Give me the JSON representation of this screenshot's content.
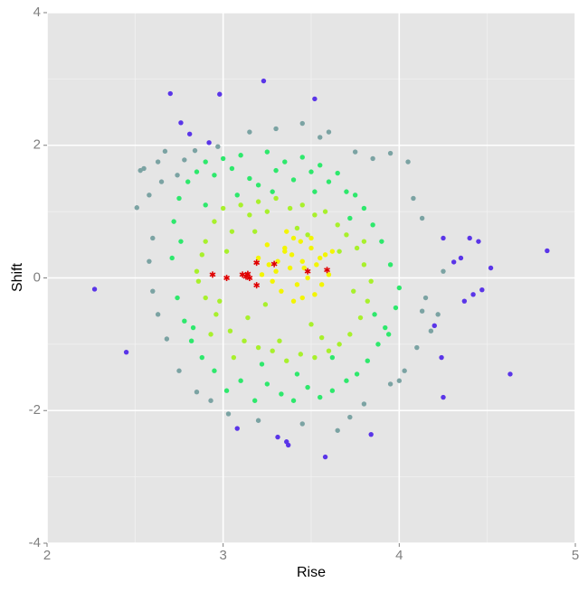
{
  "chart_data": {
    "type": "scatter",
    "x_label": "Rise",
    "y_label": "Shift",
    "xlim": [
      2,
      5
    ],
    "xticks": [
      2,
      3,
      4,
      5
    ],
    "ylim": [
      -4,
      4
    ],
    "yticks": [
      -4,
      -2,
      0,
      2,
      4
    ],
    "grid": true,
    "series": [
      {
        "color": "#5a35e8",
        "marker": "circle",
        "x": [
          2.27,
          2.7,
          2.98,
          3.23,
          4.84,
          4.63,
          2.45,
          3.58,
          3.84,
          4.25,
          4.52,
          4.45,
          4.4,
          4.47,
          4.42,
          4.35,
          4.25,
          4.37,
          4.31,
          4.2,
          4.24,
          3.37,
          3.31,
          3.36,
          3.08,
          3.52,
          2.92,
          2.76,
          2.81
        ],
        "y": [
          -0.17,
          2.78,
          2.77,
          2.97,
          0.41,
          -1.45,
          -1.12,
          -2.7,
          -2.36,
          -1.8,
          0.15,
          0.55,
          0.6,
          -0.18,
          -0.25,
          0.3,
          0.6,
          -0.35,
          0.24,
          -0.72,
          -1.2,
          -2.52,
          -2.4,
          -2.47,
          -2.27,
          2.7,
          2.04,
          2.34,
          2.17
        ]
      },
      {
        "color": "#7ba3a3",
        "marker": "circle",
        "x": [
          2.53,
          2.55,
          2.58,
          2.51,
          2.63,
          2.67,
          2.78,
          2.84,
          2.97,
          3.15,
          3.3,
          3.45,
          3.55,
          3.6,
          3.75,
          3.85,
          3.95,
          4.05,
          4.08,
          4.13,
          4.13,
          4.18,
          4.1,
          4.03,
          3.95,
          3.8,
          3.72,
          3.65,
          3.45,
          3.2,
          3.03,
          2.93,
          2.85,
          2.75,
          2.68,
          2.63,
          2.6,
          2.58,
          2.6,
          4.0,
          4.15,
          4.25,
          4.22,
          2.65,
          2.74
        ],
        "y": [
          1.62,
          1.65,
          1.25,
          1.06,
          1.75,
          1.91,
          1.78,
          1.92,
          1.98,
          2.2,
          2.25,
          2.33,
          2.12,
          2.2,
          1.9,
          1.8,
          1.88,
          1.75,
          1.2,
          0.9,
          -0.5,
          -0.8,
          -1.05,
          -1.4,
          -1.6,
          -1.9,
          -2.1,
          -2.3,
          -2.2,
          -2.15,
          -2.05,
          -1.85,
          -1.72,
          -1.4,
          -0.92,
          -0.55,
          -0.2,
          0.25,
          0.6,
          -1.55,
          -0.3,
          0.1,
          -0.55,
          1.45,
          1.55
        ]
      },
      {
        "color": "#2ee86c",
        "marker": "circle",
        "x": [
          2.72,
          2.75,
          2.8,
          2.85,
          2.9,
          2.95,
          3.0,
          3.05,
          3.1,
          3.15,
          3.2,
          3.25,
          3.3,
          3.35,
          3.4,
          3.45,
          3.5,
          3.55,
          3.6,
          3.65,
          3.7,
          3.75,
          3.8,
          3.85,
          3.9,
          3.95,
          4.0,
          3.98,
          3.92,
          3.88,
          3.82,
          3.76,
          3.7,
          3.62,
          3.55,
          3.48,
          3.4,
          3.33,
          3.25,
          3.18,
          3.1,
          3.02,
          2.95,
          2.88,
          2.82,
          2.78,
          2.74,
          2.71,
          2.76,
          2.83,
          3.22,
          3.42,
          3.62,
          3.86,
          2.9,
          3.08,
          3.28,
          3.52,
          3.72,
          3.94
        ],
        "y": [
          0.85,
          1.2,
          1.45,
          1.6,
          1.75,
          1.55,
          1.8,
          1.65,
          1.85,
          1.5,
          1.4,
          1.9,
          1.62,
          1.75,
          1.48,
          1.82,
          1.6,
          1.7,
          1.45,
          1.58,
          1.3,
          1.25,
          1.05,
          0.8,
          0.55,
          0.2,
          -0.15,
          -0.45,
          -0.75,
          -1.0,
          -1.25,
          -1.45,
          -1.55,
          -1.7,
          -1.8,
          -1.65,
          -1.85,
          -1.75,
          -1.6,
          -1.85,
          -1.55,
          -1.7,
          -1.4,
          -1.2,
          -0.95,
          -0.65,
          -0.3,
          0.3,
          0.55,
          -0.75,
          -1.3,
          -1.45,
          -1.2,
          -0.55,
          1.1,
          1.25,
          1.3,
          1.3,
          0.9,
          -0.85
        ]
      },
      {
        "color": "#a8f02c",
        "marker": "circle",
        "x": [
          2.85,
          2.9,
          2.95,
          3.0,
          3.05,
          3.1,
          3.15,
          3.2,
          3.25,
          3.3,
          3.38,
          3.45,
          3.52,
          3.58,
          3.65,
          3.7,
          3.76,
          3.8,
          3.84,
          3.82,
          3.78,
          3.72,
          3.66,
          3.6,
          3.52,
          3.44,
          3.36,
          3.28,
          3.2,
          3.12,
          3.04,
          2.96,
          2.9,
          2.86,
          2.88,
          2.93,
          3.06,
          3.32,
          3.56,
          3.74,
          3.02,
          3.18,
          3.42,
          3.66,
          3.14,
          3.5,
          2.98,
          3.8,
          3.24,
          3.48
        ],
        "y": [
          0.1,
          0.55,
          0.85,
          1.05,
          0.7,
          1.1,
          0.95,
          1.15,
          1.0,
          1.2,
          1.05,
          1.1,
          0.95,
          1.0,
          0.8,
          0.65,
          0.45,
          0.2,
          -0.05,
          -0.35,
          -0.6,
          -0.85,
          -1.0,
          -1.1,
          -1.2,
          -1.15,
          -1.25,
          -1.1,
          -1.05,
          -0.95,
          -0.8,
          -0.55,
          -0.3,
          -0.05,
          0.35,
          -0.85,
          -1.2,
          -0.95,
          -0.9,
          -0.2,
          0.4,
          0.7,
          0.75,
          0.4,
          -0.6,
          -0.7,
          -0.35,
          0.55,
          -0.4,
          0.65
        ]
      },
      {
        "color": "#f3f500",
        "marker": "circle",
        "x": [
          3.2,
          3.25,
          3.3,
          3.35,
          3.4,
          3.45,
          3.5,
          3.55,
          3.6,
          3.42,
          3.38,
          3.48,
          3.33,
          3.52,
          3.28,
          3.58,
          3.44,
          3.36,
          3.46,
          3.22,
          3.4,
          3.56,
          3.31,
          3.5,
          3.62,
          3.26,
          3.45,
          3.35,
          3.53,
          3.39
        ],
        "y": [
          0.3,
          0.5,
          0.1,
          0.4,
          0.6,
          0.25,
          0.45,
          0.3,
          0.05,
          -0.1,
          0.15,
          0.0,
          -0.2,
          -0.25,
          -0.05,
          0.35,
          0.55,
          0.7,
          0.15,
          0.05,
          -0.35,
          -0.1,
          0.25,
          0.6,
          0.4,
          0.2,
          -0.3,
          0.45,
          0.2,
          0.35
        ]
      },
      {
        "color": "#e00000",
        "marker": "star",
        "x": [
          2.94,
          3.02,
          3.11,
          3.14,
          3.15,
          3.19,
          3.19,
          3.29,
          3.48,
          3.59,
          3.13
        ],
        "y": [
          0.05,
          0.0,
          0.05,
          0.06,
          0.0,
          0.23,
          -0.11,
          0.21,
          0.1,
          0.12,
          0.02
        ]
      }
    ]
  }
}
